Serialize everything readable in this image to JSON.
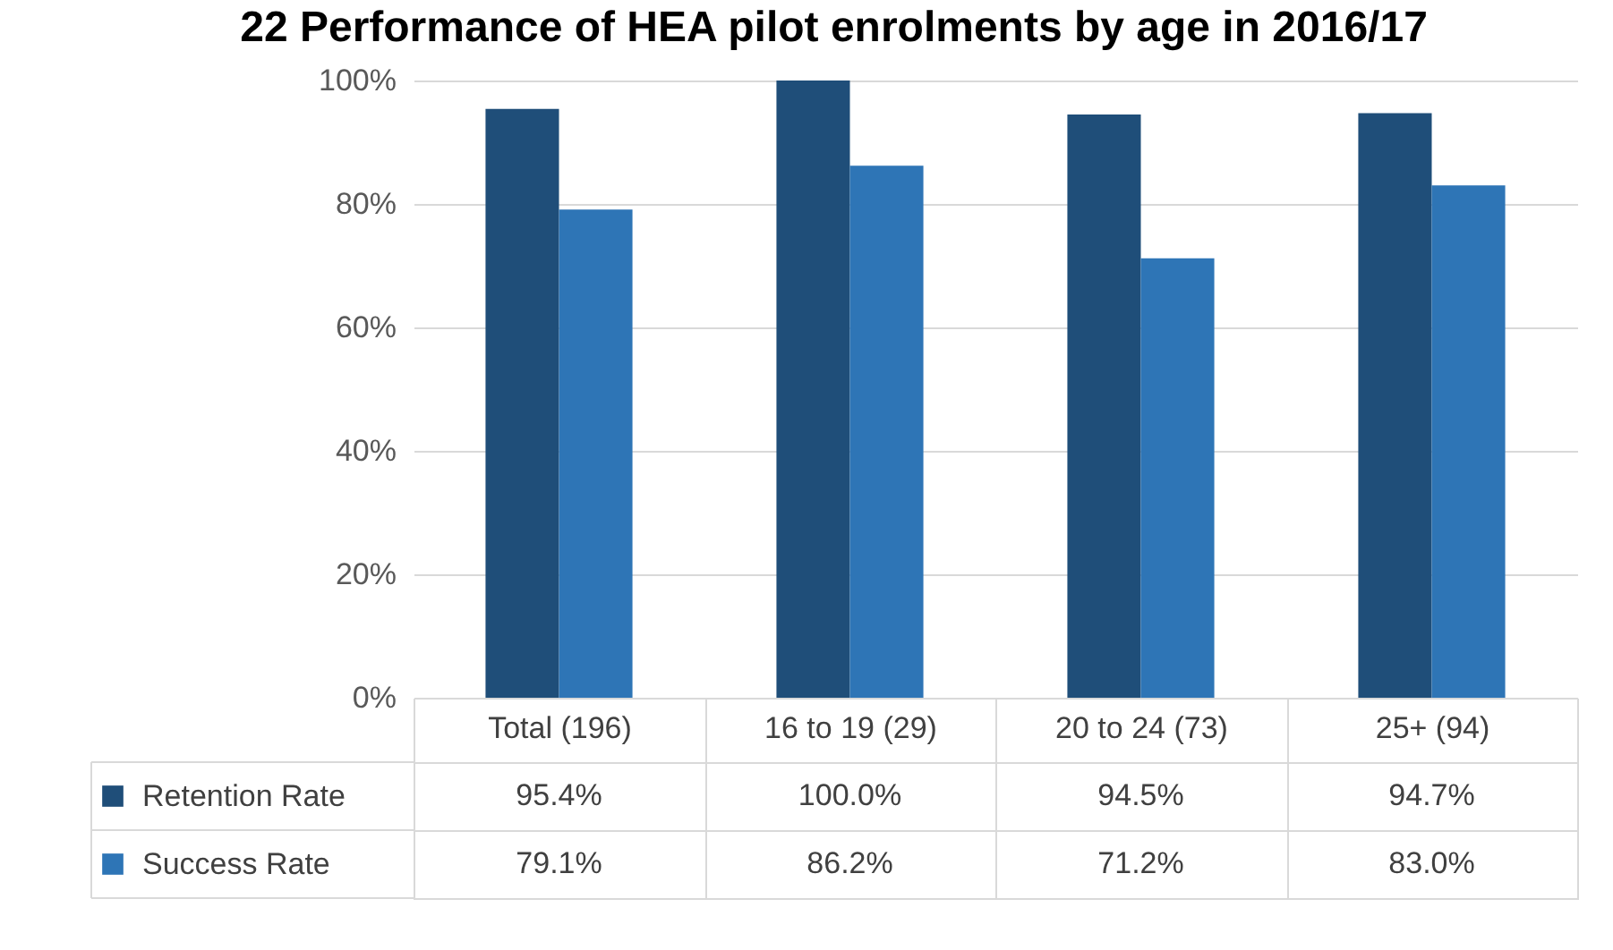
{
  "chart_data": {
    "type": "bar",
    "title": "22 Performance of HEA pilot enrolments by age in 2016/17",
    "categories": [
      "Total (196)",
      "16 to 19 (29)",
      "20 to 24 (73)",
      "25+ (94)"
    ],
    "series": [
      {
        "name": "Retention Rate",
        "color": "#1f4e79",
        "values": [
          95.4,
          100.0,
          94.5,
          94.7
        ],
        "value_labels": [
          "95.4%",
          "100.0%",
          "94.5%",
          "94.7%"
        ]
      },
      {
        "name": "Success Rate",
        "color": "#2e75b6",
        "values": [
          79.1,
          86.2,
          71.2,
          83.0
        ],
        "value_labels": [
          "79.1%",
          "86.2%",
          "71.2%",
          "83.0%"
        ]
      }
    ],
    "ylim": [
      0,
      100
    ],
    "yticks": [
      {
        "value": 0,
        "label": "0%"
      },
      {
        "value": 20,
        "label": "20%"
      },
      {
        "value": 40,
        "label": "40%"
      },
      {
        "value": 60,
        "label": "60%"
      },
      {
        "value": 80,
        "label": "80%"
      },
      {
        "value": 100,
        "label": "100%"
      }
    ],
    "grid": "y",
    "legend": "bottom"
  }
}
